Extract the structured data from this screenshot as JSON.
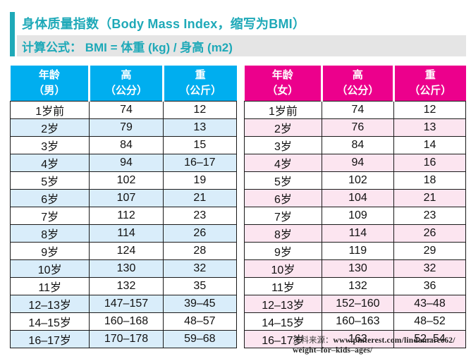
{
  "header": {
    "title": "身体质量指数（Body Mass Index，缩写为BMI）",
    "formula": "计算公式： BMI = 体重 (kg) / 身高 (m2)"
  },
  "colors": {
    "accent_teal": "#1ea9b8",
    "formula_bg": "#e5e5e5",
    "boys_header_bg": "#00aeef",
    "boys_alt_row_bg": "#d9edfa",
    "girls_header_bg": "#ec008c",
    "girls_alt_row_bg": "#fce5f0",
    "cell_border": "#1a1a1a"
  },
  "tables": {
    "boys": {
      "headers": [
        [
          "年龄",
          "（男）"
        ],
        [
          "高",
          "（公分）"
        ],
        [
          "重",
          "（公斤）"
        ]
      ],
      "rows": [
        [
          "1岁前",
          "74",
          "12"
        ],
        [
          "2岁",
          "79",
          "13"
        ],
        [
          "3岁",
          "84",
          "15"
        ],
        [
          "4岁",
          "94",
          "16–17"
        ],
        [
          "5岁",
          "102",
          "19"
        ],
        [
          "6岁",
          "107",
          "21"
        ],
        [
          "7岁",
          "112",
          "23"
        ],
        [
          "8岁",
          "114",
          "26"
        ],
        [
          "9岁",
          "124",
          "28"
        ],
        [
          "10岁",
          "130",
          "32"
        ],
        [
          "11岁",
          "132",
          "35"
        ],
        [
          "12–13岁",
          "147–157",
          "39–45"
        ],
        [
          "14–15岁",
          "160–168",
          "48–57"
        ],
        [
          "16–17岁",
          "170–178",
          "59–68"
        ]
      ]
    },
    "girls": {
      "headers": [
        [
          "年龄",
          "（女）"
        ],
        [
          "高",
          "（公分）"
        ],
        [
          "重",
          "（公斤）"
        ]
      ],
      "rows": [
        [
          "1岁前",
          "74",
          "12"
        ],
        [
          "2岁",
          "76",
          "13"
        ],
        [
          "3岁",
          "84",
          "14"
        ],
        [
          "4岁",
          "94",
          "16"
        ],
        [
          "5岁",
          "102",
          "18"
        ],
        [
          "6岁",
          "104",
          "21"
        ],
        [
          "7岁",
          "109",
          "23"
        ],
        [
          "8岁",
          "114",
          "26"
        ],
        [
          "9岁",
          "119",
          "29"
        ],
        [
          "10岁",
          "130",
          "32"
        ],
        [
          "11岁",
          "132",
          "36"
        ],
        [
          "12–13岁",
          "152–160",
          "43–48"
        ],
        [
          "14–15岁",
          "160–163",
          "48–52"
        ],
        [
          "16–17岁",
          "163",
          "52–54"
        ]
      ]
    }
  },
  "footer": {
    "source_label": "资料来源：",
    "source_url_line1": "www.pinterest.com/lindamaree62/",
    "source_url_line2": "weight–for–kids–ages/"
  }
}
